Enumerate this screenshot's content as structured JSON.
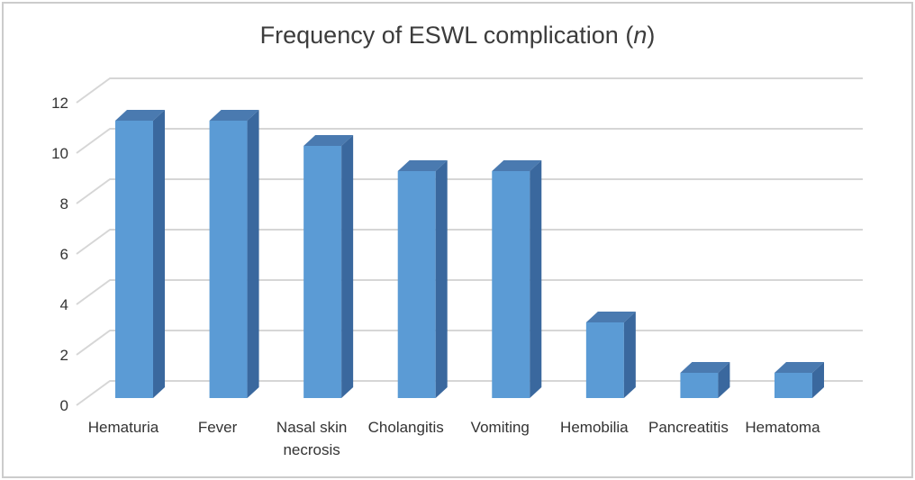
{
  "title": {
    "prefix": "Frequency of ESWL complication (",
    "italic": "n",
    "suffix": ")"
  },
  "chart_data": {
    "type": "bar",
    "style": "3d-column",
    "title": "Frequency of ESWL complication (n)",
    "categories": [
      "Hematuria",
      "Fever",
      "Nasal skin necrosis",
      "Cholangitis",
      "Vomiting",
      "Hemobilia",
      "Pancreatitis",
      "Hematoma"
    ],
    "values": [
      11,
      11,
      10,
      9,
      9,
      3,
      1,
      1
    ],
    "xlabel": "",
    "ylabel": "",
    "ylim": [
      0,
      12
    ],
    "yticks": [
      0,
      2,
      4,
      6,
      8,
      10,
      12
    ],
    "grid": true,
    "legend_position": "none",
    "colors": {
      "bar_front": "#5b9bd5",
      "bar_side": "#3a689e",
      "bar_top": "#4a7ab0",
      "gridline": "#d6d6d6",
      "text": "#333333",
      "title_text": "#3c3c3c",
      "frame_border": "#cccccc",
      "background": "#ffffff"
    }
  }
}
